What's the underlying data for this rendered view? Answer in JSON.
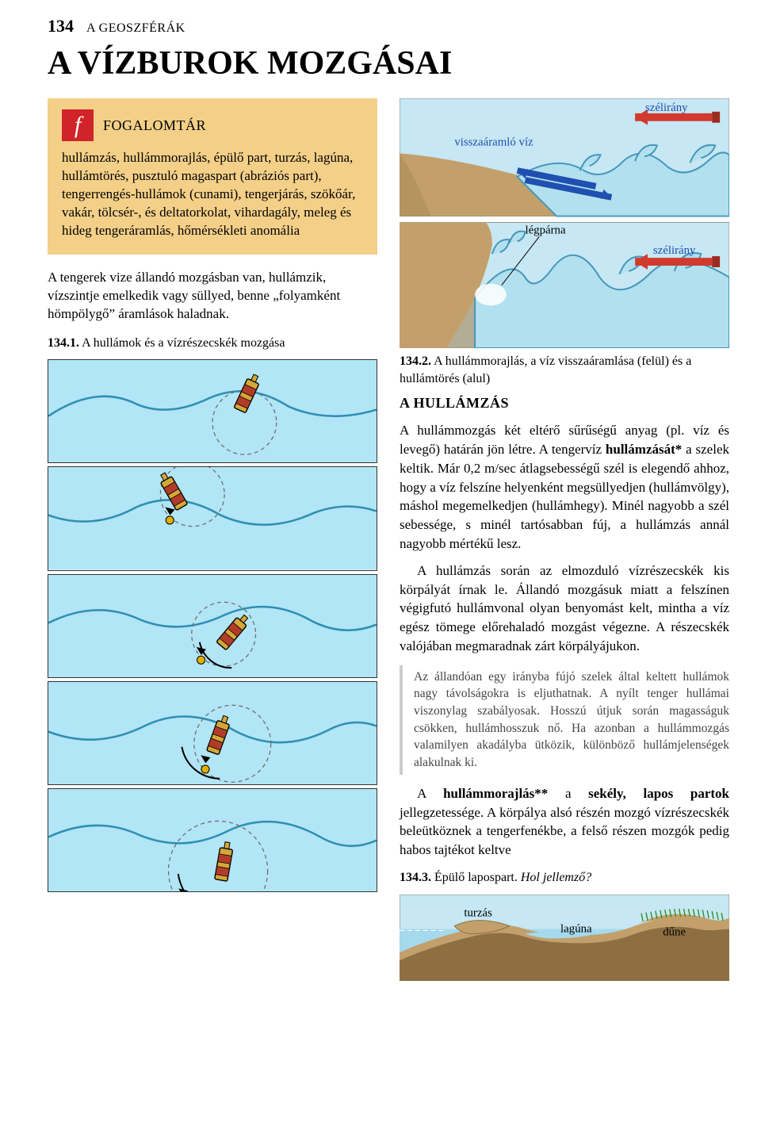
{
  "page": {
    "number": "134",
    "running_head": "A GEOSZFÉRÁK",
    "title": "A VÍZBUROK MOZGÁSAI"
  },
  "glossary": {
    "icon_letter": "f",
    "title": "FOGALOMTÁR",
    "body": "hullámzás, hullámmorajlás, épülő part, turzás, lagúna, hullámtörés, pusztuló magaspart (abráziós part), tengerrengés-hullámok (cunami), tengerjárás, szökőár, vakár, tölcsér-, és deltatorkolat, vihardagály, meleg és hideg tengeráramlás, hőmérsékleti anomália"
  },
  "intro_paragraph": "A tengerek vize állandó mozgásban van, hullámzik, vízszintje emelkedik vagy süllyed, benne „folyamként hömpölygő” áramlások haladnak.",
  "fig_134_1": {
    "caption_bold": "134.1.",
    "caption_rest": " A hullámok és a vízrészecskék mozgása",
    "panel_count": 5,
    "colors": {
      "sky": "#b2e5f5",
      "water_line": "#2e8fb3",
      "buoy_body": "#d4a837",
      "buoy_stripe": "#b33b2a",
      "buoy_outline": "#000000",
      "orbit_dash": "#6a6a6a",
      "dot": "#e0b100"
    }
  },
  "fig_134_2": {
    "caption_bold": "134.2.",
    "caption_rest": " A hullámmorajlás, a víz visszaáramlása (felül) és a hullámtörés (alul)",
    "labels": {
      "wind_top": "szélirány",
      "return_water": "visszaáramló víz",
      "wind_bottom": "szélirány",
      "air_cushion": "légpárna"
    },
    "colors": {
      "sky": "#c6e7f3",
      "water": "#8bcde6",
      "wave_fill": "#b2e0ef",
      "wave_stroke": "#4596b9",
      "land": "#c3a06b",
      "land_side": "#a98756",
      "arrow_red": "#d23a2e",
      "arrow_red_dark": "#9c2b20",
      "arrow_blue": "#1f4fb0",
      "arrow_blue_dark": "#12306f",
      "label_text": "#1f4fb0",
      "bubble": "#ffffff"
    }
  },
  "section": {
    "title": "A HULLÁMZÁS",
    "p1": "A hullámmozgás két eltérő sűrűségű anyag (pl. víz és levegő) határán jön létre. A tengervíz hullámzását* a szelek keltik. Már 0,2 m/sec átlagsebességű szél is elegendő ahhoz, hogy a víz felszíne helyenként megsüllyedjen (hullámvölgy), máshol megemelkedjen (hullámhegy). Minél nagyobb a szél sebessége, s minél tartósabban fúj, a hullámzás annál nagyobb mértékű lesz.",
    "p2": "A hullámzás során az elmozduló vízrészecskék kis körpályát írnak le. Állandó mozgásuk miatt a felszínen végigfutó hullámvonal olyan benyomást kelt, mintha a víz egész tömege előrehaladó mozgást végezne. A részecskék valójában megmaradnak zárt körpályájukon.",
    "note": "Az állandóan egy irányba fújó szelek által keltett hullámok nagy távolságokra is eljuthatnak. A nyílt tenger hullámai viszonylag szabályosak. Hosszú útjuk során magasságuk csökken, hullámhosszuk nő. Ha azonban a hullámmozgás valamilyen akadályba ütközik, különböző hullámjelenségek alakulnak ki.",
    "p3": "A hullámmorajlás** a sekély, lapos partok jellegzetessége. A körpálya alsó részén mozgó vízrészecskék beleütköznek a tengerfenékbe, a felső részen mozgók pedig habos tajtékot keltve"
  },
  "fig_134_3": {
    "caption_bold": "134.3.",
    "caption_rest": " Épülő lapospart. ",
    "caption_italic": "Hol jellemző?",
    "labels": {
      "spit": "turzás",
      "lagoon": "lagúna",
      "dune": "dűne"
    },
    "colors": {
      "sky": "#c6e7f3",
      "water": "#a6d9eb",
      "sand_top": "#c3a06b",
      "sand_side": "#8e6f43",
      "grass": "#2f8f2a",
      "label_text": "#000000"
    }
  }
}
